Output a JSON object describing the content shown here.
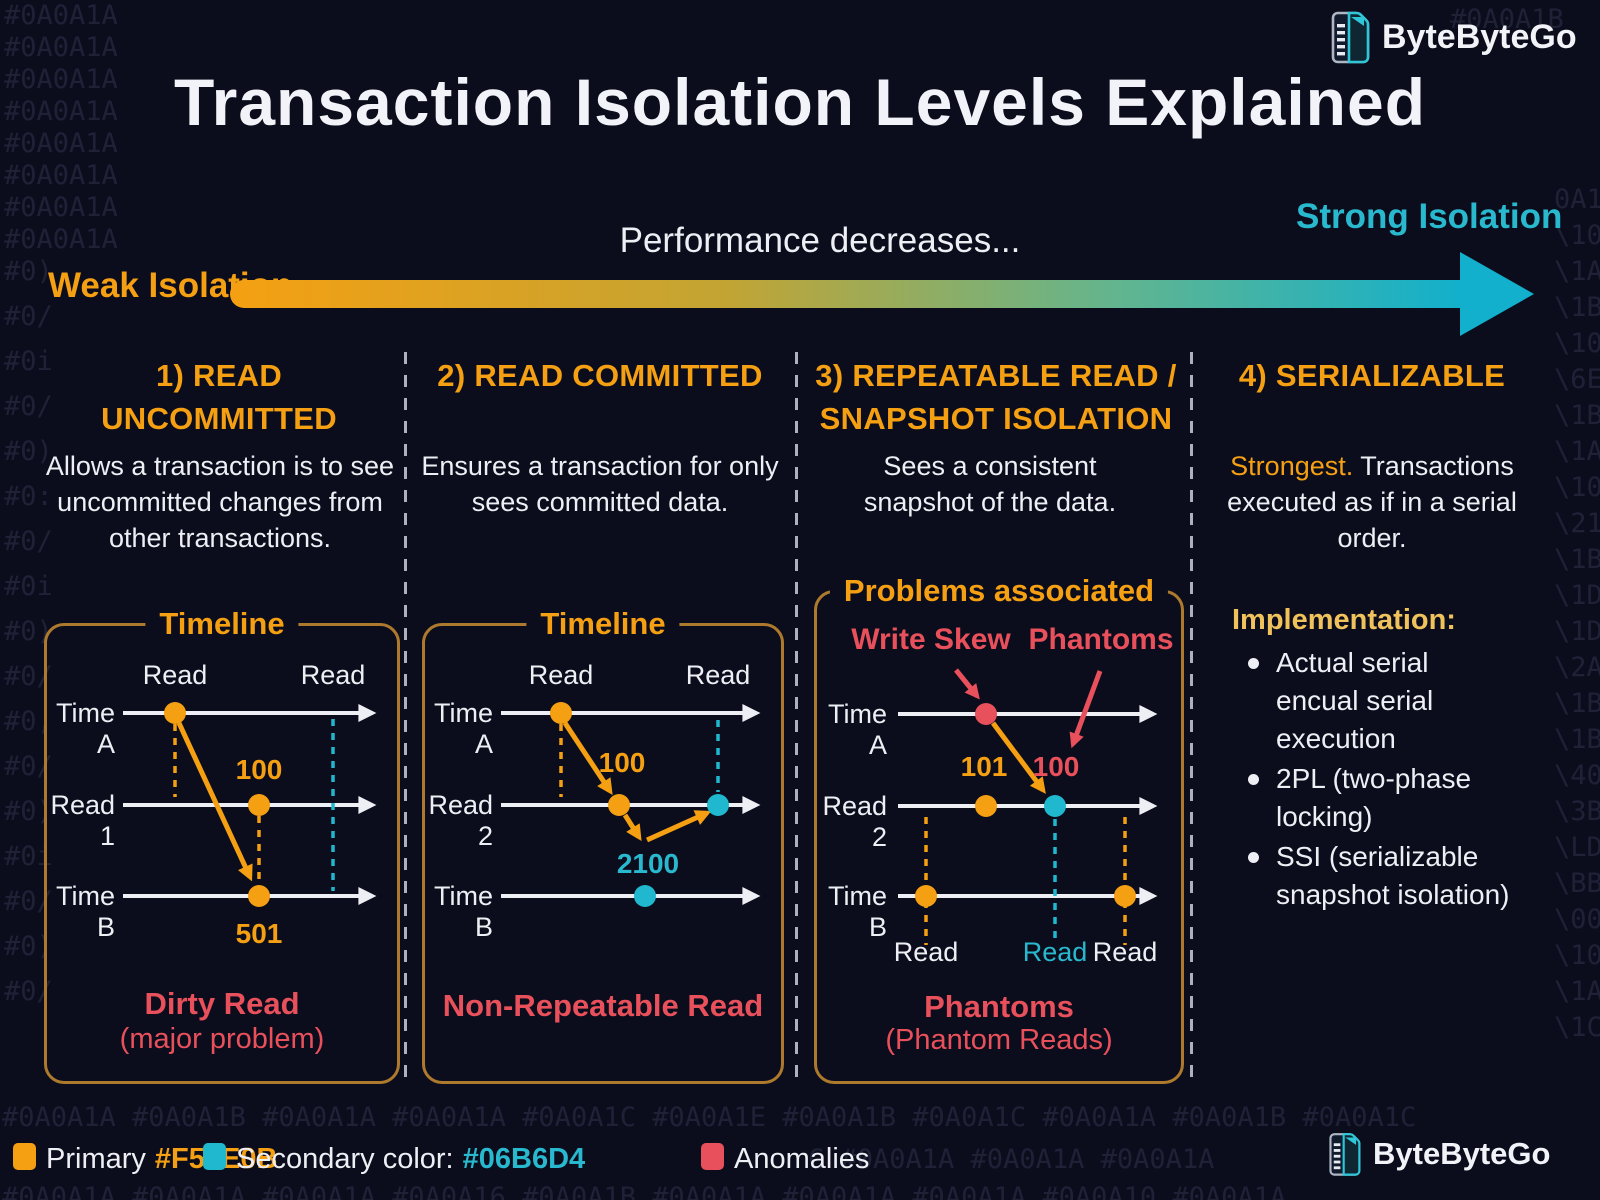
{
  "header": {
    "title": "Transaction Isolation Levels Explained",
    "logo_text": "ByteByteGo"
  },
  "axis": {
    "weak": "Weak Isolation",
    "performance": "Performance decreases...",
    "strong": "Strong Isolation",
    "gradient_start": "#F59E0B",
    "gradient_end": "#06B6D4"
  },
  "columns": [
    {
      "heading_line1": "1) READ",
      "heading_line2": "UNCOMMITTED",
      "description": "Allows a transaction is to see uncommitted changes from other transactions.",
      "box_title": "Timeline",
      "read_top_left": "Read",
      "read_top_right": "Read",
      "row1": "Time A",
      "row2": "Read 1",
      "row3": "Time B",
      "value1": "100",
      "value2": "501",
      "problem": "Dirty Read",
      "problem_sub": "(major problem)"
    },
    {
      "heading_line1": "2) READ COMMITTED",
      "description": "Ensures a transaction for only sees committed data.",
      "box_title": "Timeline",
      "read_top_left": "Read",
      "read_top_right": "Read",
      "row1": "Time A",
      "row2": "Read 2",
      "row3": "Time B",
      "value1": "100",
      "value2": "2100",
      "problem": "Non-Repeatable Read"
    },
    {
      "heading_line1": "3) REPEATABLE READ /",
      "heading_line2": "SNAPSHOT ISOLATION",
      "description": "Sees a consistent snapshot of the data.",
      "box_title": "Problems associated",
      "annotation1": "Write Skew",
      "annotation2": "Phantoms",
      "row1": "Time A",
      "row2": "Read 2",
      "row3": "Time B",
      "value1": "101",
      "value2": "100",
      "read_bottom1": "Read",
      "read_bottom2": "Read",
      "read_bottom3": "Read",
      "problem": "Phantoms",
      "problem_sub": "(Phantom Reads)"
    },
    {
      "heading_line1": "4) SERIALIZABLE",
      "description_strong": "Strongest.",
      "description_rest": "Transactions executed as if in a serial order.",
      "implementation_title": "Implementation:",
      "bullets": [
        {
          "l1": "Actual serial",
          "l2": "encual serial",
          "l3": "execution"
        },
        {
          "l1": "2PL (two-phase",
          "l2": "locking)"
        },
        {
          "l1": "SSI (serializable",
          "l2": "snapshot isolation)"
        }
      ]
    }
  ],
  "legend": {
    "primary_label": "Primary",
    "primary_hex": "#F59E0B",
    "secondary_label": "Secondary color:",
    "secondary_hex": "#06B6D4",
    "anomalies_label": "Anomalies"
  },
  "footer": {
    "logo_text": "ByteByteGo"
  },
  "colors": {
    "primary": "#F59E0B",
    "secondary": "#06B6D4",
    "anomaly": "#E8505B"
  },
  "background": {
    "right_top": "#0A0A1B",
    "left_column": [
      "#0A0A1A",
      "#0A0A1A",
      "#0A0A1A",
      "#0A0A1A",
      "#0A0A1A",
      "#0A0A1A",
      "#0A0A1A",
      "#0A0A1A",
      "#0)",
      "#0/",
      "#0i",
      "#0/",
      "#0)",
      "#0:",
      "#0/",
      "#0i",
      "#0)",
      "#0/",
      "#0,",
      "#0/",
      "#0)",
      "#0i",
      "#0/",
      "#0)",
      "#0/"
    ],
    "right_column": [
      "0A1D",
      "\\10",
      "\\1A",
      "\\1B",
      "\\10",
      "\\6E",
      "\\1B",
      "\\1A",
      "\\10",
      "\\21",
      "\\1B",
      "\\1D",
      "\\1D",
      "\\2A",
      "\\1B",
      "\\1B",
      "\\40",
      "\\3B",
      "\\LD",
      "\\BB",
      "\\00",
      "\\10",
      "\\1A",
      "\\1C"
    ],
    "rows": [
      "#0A0A1A #0A0A1B #0A0A1A #0A0A1A #0A0A1C #0A0A1E #0A0A1B #0A0A1C #0A0A1A #0A0A1B #0A0A1C",
      "C #0A0A1A #0A0A1A #0A0A1A",
      "#0A0A1A #0A0A1A #0A0A1A #0A0A16 #0A0A1B #0A0A1A #0A0A1A #0A0A1A #0A0A10 #0A0A1A"
    ]
  }
}
